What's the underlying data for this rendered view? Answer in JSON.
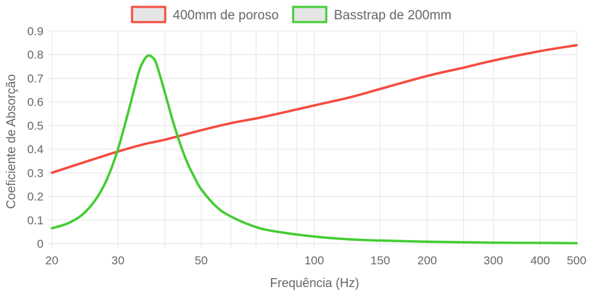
{
  "chart_data": {
    "type": "line",
    "x_scale": "log",
    "xlabel": "Frequência (Hz)",
    "ylabel": "Coeficiente de Absorção",
    "xlim": [
      20,
      500
    ],
    "ylim": [
      0,
      0.9
    ],
    "x_ticks": [
      20,
      30,
      50,
      100,
      150,
      200,
      300,
      400,
      500
    ],
    "x_tick_labels": [
      "20",
      "30",
      "50",
      "100",
      "150",
      "200",
      "300",
      "400",
      "500"
    ],
    "x_minor_gridlines": [
      40,
      60,
      70,
      80,
      90,
      250
    ],
    "y_ticks": [
      0,
      0.1,
      0.2,
      0.3,
      0.4,
      0.5,
      0.6,
      0.7,
      0.8,
      0.9
    ],
    "y_tick_labels": [
      "0",
      "0.1",
      "0.2",
      "0.3",
      "0.4",
      "0.5",
      "0.6",
      "0.7",
      "0.8",
      "0.9"
    ],
    "grid": true,
    "legend_position": "top-center",
    "series": [
      {
        "name": "400mm de poroso",
        "color": "#f44b3f",
        "x": [
          20,
          25,
          30,
          35,
          40,
          50,
          60,
          70,
          80,
          100,
          125,
          150,
          200,
          250,
          300,
          400,
          500
        ],
        "y": [
          0.3,
          0.35,
          0.39,
          0.42,
          0.44,
          0.48,
          0.51,
          0.53,
          0.55,
          0.585,
          0.62,
          0.655,
          0.71,
          0.745,
          0.775,
          0.815,
          0.84
        ]
      },
      {
        "name": "Basstrap de 200mm",
        "color": "#44cc33",
        "x": [
          20,
          22,
          24,
          26,
          28,
          30,
          32,
          34,
          35,
          36,
          37,
          38,
          40,
          42,
          44,
          46,
          48,
          50,
          55,
          60,
          70,
          80,
          100,
          125,
          150,
          200,
          250,
          300,
          400,
          500
        ],
        "y": [
          0.065,
          0.085,
          0.12,
          0.18,
          0.27,
          0.4,
          0.56,
          0.72,
          0.77,
          0.795,
          0.79,
          0.76,
          0.64,
          0.52,
          0.42,
          0.34,
          0.28,
          0.23,
          0.155,
          0.115,
          0.07,
          0.05,
          0.03,
          0.018,
          0.013,
          0.008,
          0.006,
          0.004,
          0.003,
          0.002
        ]
      }
    ]
  }
}
